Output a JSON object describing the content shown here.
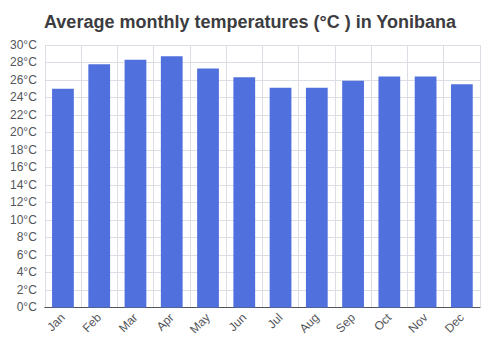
{
  "chart_data": {
    "type": "bar",
    "title": "Average monthly temperatures (°C ) in Yonibana",
    "categories": [
      "Jan",
      "Feb",
      "Mar",
      "Apr",
      "May",
      "Jun",
      "Jul",
      "Aug",
      "Sep",
      "Oct",
      "Nov",
      "Dec"
    ],
    "values": [
      25.0,
      27.8,
      28.3,
      28.7,
      27.3,
      26.3,
      25.1,
      25.1,
      25.9,
      26.4,
      26.4,
      25.5
    ],
    "ylim": [
      0,
      30
    ],
    "yticks": [
      {
        "value": 0,
        "label": "0°C"
      },
      {
        "value": 2,
        "label": "2°C"
      },
      {
        "value": 4,
        "label": "4°C"
      },
      {
        "value": 6,
        "label": "6°C"
      },
      {
        "value": 8,
        "label": "8°C"
      },
      {
        "value": 10,
        "label": "10°C"
      },
      {
        "value": 12,
        "label": "12°C"
      },
      {
        "value": 14,
        "label": "14°C"
      },
      {
        "value": 16,
        "label": "16°C"
      },
      {
        "value": 18,
        "label": "18°C"
      },
      {
        "value": 20,
        "label": "20°C"
      },
      {
        "value": 22,
        "label": "22°C"
      },
      {
        "value": 24,
        "label": "24°C"
      },
      {
        "value": 26,
        "label": "26°C"
      },
      {
        "value": 28,
        "label": "28°C"
      },
      {
        "value": 30,
        "label": "30°C"
      }
    ],
    "grid": true
  }
}
